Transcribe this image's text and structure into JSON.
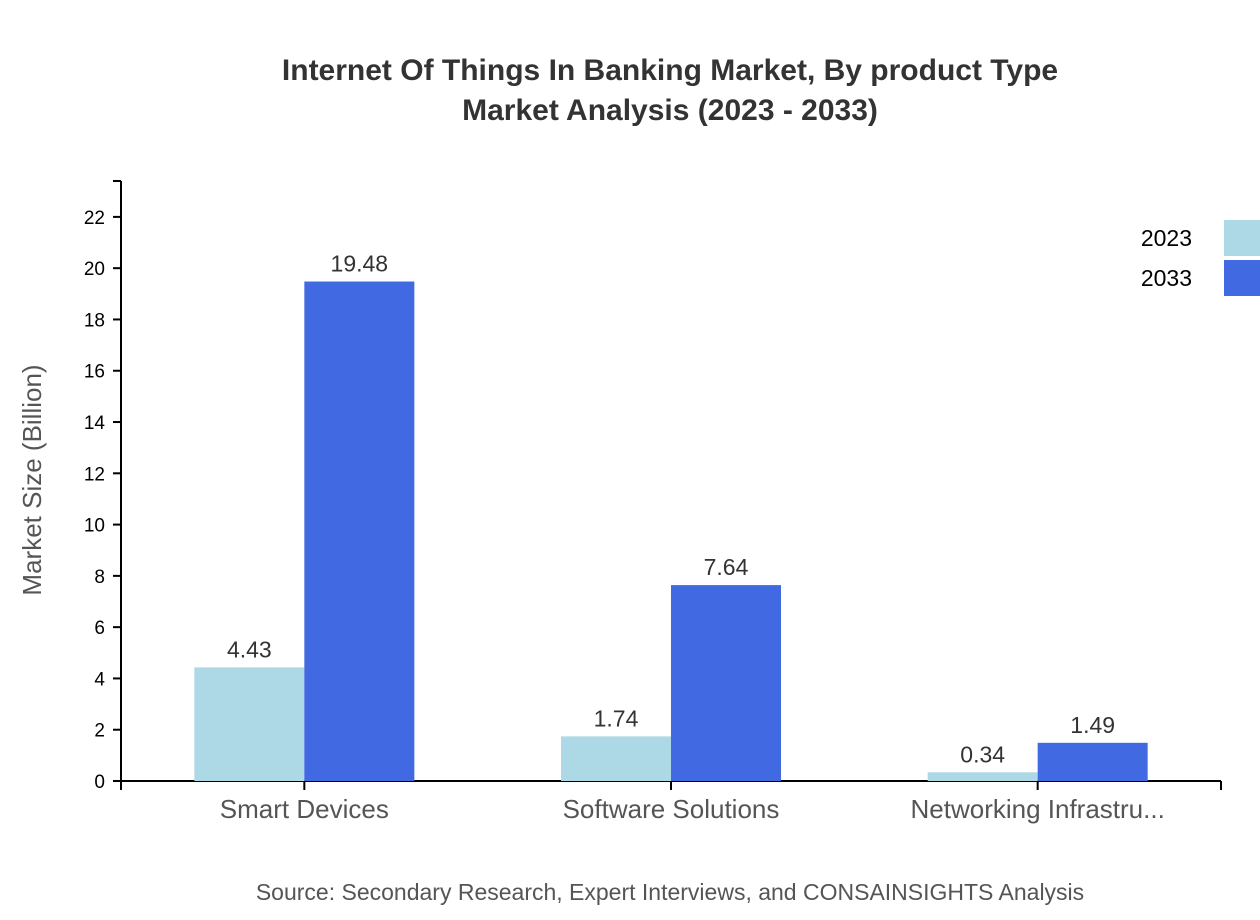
{
  "chart_data": {
    "type": "bar",
    "title": [
      "Internet Of Things In Banking Market, By product Type",
      "Market Analysis (2023 - 2033)"
    ],
    "ylabel": "Market Size (Billion)",
    "xlabel": "",
    "categories": [
      "Smart Devices",
      "Software Solutions",
      "Networking Infrastru..."
    ],
    "series": [
      {
        "name": "2023",
        "color": "#add8e6",
        "values": [
          4.43,
          1.74,
          0.34
        ]
      },
      {
        "name": "2033",
        "color": "#4169e1",
        "values": [
          19.48,
          7.64,
          1.49
        ]
      }
    ],
    "ylim": [
      0,
      23.4
    ],
    "yticks": [
      0,
      2,
      4,
      6,
      8,
      10,
      12,
      14,
      16,
      18,
      20,
      22
    ],
    "legend": "top-right",
    "grid": false,
    "source": "Source: Secondary Research, Expert Interviews, and CONSAINSIGHTS Analysis"
  }
}
